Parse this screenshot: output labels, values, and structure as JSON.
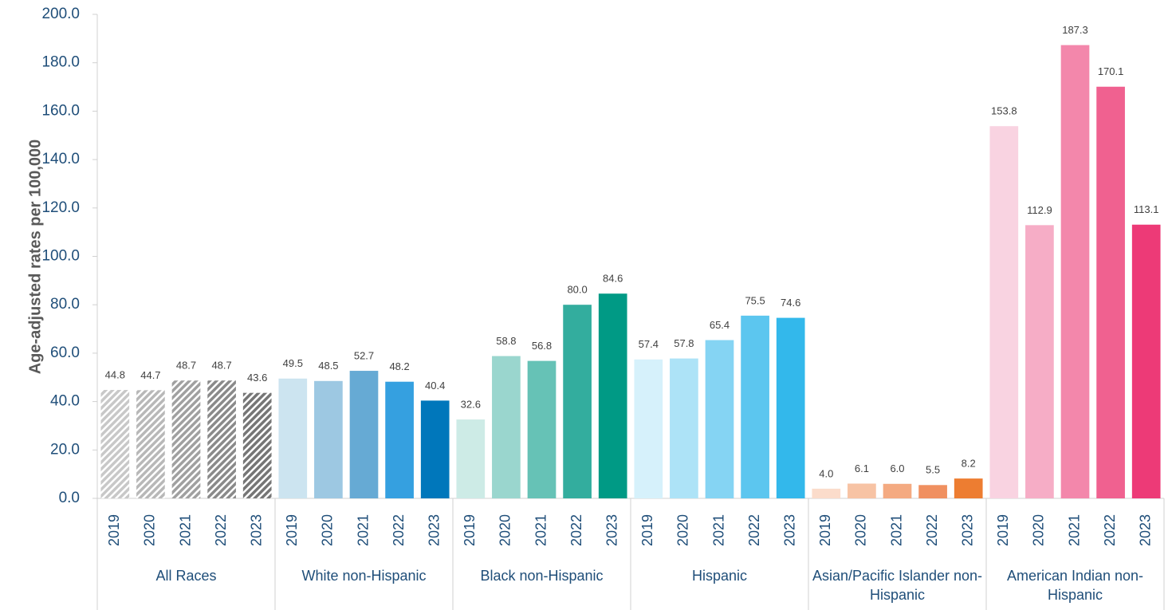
{
  "chart_data": {
    "type": "bar",
    "y_axis_label": "Age-adjusted rates per 100,000",
    "ylim": [
      0,
      200
    ],
    "yticks": [
      {
        "value": 0,
        "label": "0.0"
      },
      {
        "value": 20,
        "label": "20.0"
      },
      {
        "value": 40,
        "label": "40.0"
      },
      {
        "value": 60,
        "label": "60.0"
      },
      {
        "value": 80,
        "label": "80.0"
      },
      {
        "value": 100,
        "label": "100.0"
      },
      {
        "value": 120,
        "label": "120.0"
      },
      {
        "value": 140,
        "label": "140.0"
      },
      {
        "value": 160,
        "label": "160.0"
      },
      {
        "value": 180,
        "label": "180.0"
      },
      {
        "value": 200,
        "label": "200.0"
      }
    ],
    "groups": [
      {
        "name": "All Races",
        "pattern": "hatch",
        "categories": [
          "2019",
          "2020",
          "2021",
          "2022",
          "2023"
        ],
        "values": [
          44.8,
          44.7,
          48.7,
          48.7,
          43.6
        ],
        "value_labels": [
          "44.8",
          "44.7",
          "48.7",
          "48.7",
          "43.6"
        ],
        "colors": [
          "#c8c8c8",
          "#b8b8b8",
          "#a0a0a0",
          "#8a8a8a",
          "#767676"
        ]
      },
      {
        "name": "White non-Hispanic",
        "categories": [
          "2019",
          "2020",
          "2021",
          "2022",
          "2023"
        ],
        "values": [
          49.5,
          48.5,
          52.7,
          48.2,
          40.4
        ],
        "value_labels": [
          "49.5",
          "48.5",
          "52.7",
          "48.2",
          "40.4"
        ],
        "colors": [
          "#cce4f0",
          "#9dc8e2",
          "#66aad4",
          "#35a0e0",
          "#0077bb"
        ]
      },
      {
        "name": "Black non-Hispanic",
        "categories": [
          "2019",
          "2020",
          "2021",
          "2022",
          "2023"
        ],
        "values": [
          32.6,
          58.8,
          56.8,
          80.0,
          84.6
        ],
        "value_labels": [
          "32.6",
          "58.8",
          "56.8",
          "80.0",
          "84.6"
        ],
        "colors": [
          "#cdebe6",
          "#9ad6ce",
          "#66c2b6",
          "#33ad9e",
          "#009a85"
        ]
      },
      {
        "name": "Hispanic",
        "categories": [
          "2019",
          "2020",
          "2021",
          "2022",
          "2023"
        ],
        "values": [
          57.4,
          57.8,
          65.4,
          75.5,
          74.6
        ],
        "value_labels": [
          "57.4",
          "57.8",
          "65.4",
          "75.5",
          "74.6"
        ],
        "colors": [
          "#d6f1fb",
          "#ade3f7",
          "#85d4f3",
          "#5cc6ef",
          "#33b8eb"
        ]
      },
      {
        "name": "Asian/Pacific Islander non-Hispanic",
        "categories": [
          "2019",
          "2020",
          "2021",
          "2022",
          "2023"
        ],
        "values": [
          4.0,
          6.1,
          6.0,
          5.5,
          8.2
        ],
        "value_labels": [
          "4.0",
          "6.1",
          "6.0",
          "5.5",
          "8.2"
        ],
        "colors": [
          "#fbdccb",
          "#f7c3a4",
          "#f4aa81",
          "#f09060",
          "#ed7d31"
        ]
      },
      {
        "name": "American Indian non-Hispanic",
        "categories": [
          "2019",
          "2020",
          "2021",
          "2022",
          "2023"
        ],
        "values": [
          153.8,
          112.9,
          187.3,
          170.1,
          113.1
        ],
        "value_labels": [
          "153.8",
          "112.9",
          "187.3",
          "170.1",
          "113.1"
        ],
        "colors": [
          "#f9d3e1",
          "#f6adc6",
          "#f387ab",
          "#f06190",
          "#ed3a77"
        ]
      }
    ]
  }
}
